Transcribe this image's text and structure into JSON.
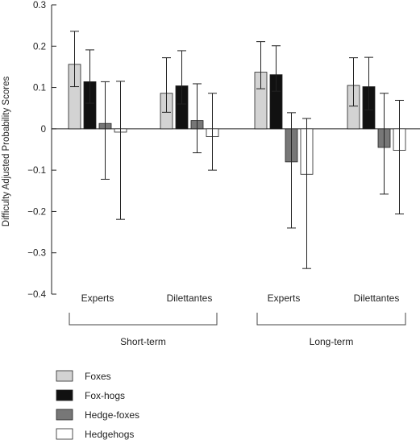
{
  "chart_data": {
    "type": "bar",
    "ylabel": "Difficulty Adjusted Probability Scores",
    "ylim": [
      -0.4,
      0.3
    ],
    "yticks": [
      0.3,
      0.2,
      0.1,
      0,
      -0.1,
      -0.2,
      -0.3,
      -0.4
    ],
    "ytick_labels": [
      "0.3",
      "0.2",
      "0.1",
      "0",
      "−0.1",
      "−0.2",
      "−0.3",
      "−0.4"
    ],
    "categories": [
      "Experts",
      "Dilettantes",
      "Experts",
      "Dilettantes"
    ],
    "groups": [
      {
        "label": "Short-term",
        "span": [
          0,
          1
        ]
      },
      {
        "label": "Long-term",
        "span": [
          2,
          3
        ]
      }
    ],
    "series": [
      {
        "name": "Foxes",
        "color": "#d3d3d3",
        "values": [
          0.156,
          0.086,
          0.137,
          0.105
        ],
        "error_low": [
          0.102,
          0.04,
          0.097,
          0.055
        ],
        "error_high": [
          0.236,
          0.172,
          0.211,
          0.172
        ]
      },
      {
        "name": "Fox-hogs",
        "color": "#111111",
        "values": [
          0.114,
          0.104,
          0.131,
          0.102
        ],
        "error_low": [
          0.062,
          0.06,
          0.091,
          0.046
        ],
        "error_high": [
          0.191,
          0.189,
          0.201,
          0.173
        ]
      },
      {
        "name": "Hedge-foxes",
        "color": "#777777",
        "values": [
          0.013,
          0.02,
          -0.08,
          -0.045
        ],
        "error_low": [
          -0.122,
          -0.058,
          -0.24,
          -0.158
        ],
        "error_high": [
          0.114,
          0.109,
          0.039,
          0.086
        ]
      },
      {
        "name": "Hedgehogs",
        "color": "#ffffff",
        "values": [
          -0.008,
          -0.019,
          -0.11,
          -0.052
        ],
        "error_low": [
          -0.219,
          -0.1,
          -0.338,
          -0.206
        ],
        "error_high": [
          0.115,
          0.086,
          0.025,
          0.069
        ]
      }
    ],
    "legend_position": "bottom-left",
    "grid": false
  }
}
